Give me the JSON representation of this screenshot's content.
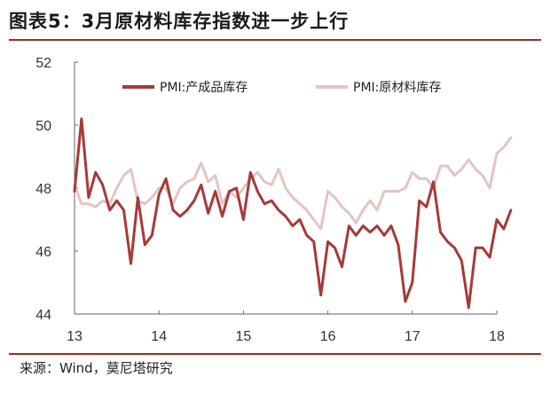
{
  "title": "图表5：3月原材料库存指数进一步上行",
  "source": "来源：Wind，莫尼塔研究",
  "colors": {
    "series1": "#a53a3a",
    "series2": "#e4c4c4",
    "rule": "#9a2c2c"
  },
  "chart_data": {
    "type": "line",
    "title": "图表5：3月原材料库存指数进一步上行",
    "xlabel": "",
    "ylabel": "",
    "x_ticks": [
      "13",
      "14",
      "15",
      "16",
      "17",
      "18"
    ],
    "x_tick_values": [
      2013,
      2014,
      2015,
      2016,
      2017,
      2018
    ],
    "y_ticks": [
      "44",
      "46",
      "48",
      "50",
      "52"
    ],
    "ylim": [
      44,
      52
    ],
    "xlim": [
      2013,
      2018.25
    ],
    "grid": false,
    "legend": "top",
    "x": [
      2013.0,
      2013.083,
      2013.167,
      2013.25,
      2013.333,
      2013.417,
      2013.5,
      2013.583,
      2013.667,
      2013.75,
      2013.833,
      2013.917,
      2014.0,
      2014.083,
      2014.167,
      2014.25,
      2014.333,
      2014.417,
      2014.5,
      2014.583,
      2014.667,
      2014.75,
      2014.833,
      2014.917,
      2015.0,
      2015.083,
      2015.167,
      2015.25,
      2015.333,
      2015.417,
      2015.5,
      2015.583,
      2015.667,
      2015.75,
      2015.833,
      2015.917,
      2016.0,
      2016.083,
      2016.167,
      2016.25,
      2016.333,
      2016.417,
      2016.5,
      2016.583,
      2016.667,
      2016.75,
      2016.833,
      2016.917,
      2017.0,
      2017.083,
      2017.167,
      2017.25,
      2017.333,
      2017.417,
      2017.5,
      2017.583,
      2017.667,
      2017.75,
      2017.833,
      2017.917,
      2018.0,
      2018.083,
      2018.167
    ],
    "series": [
      {
        "name": "PMI:产成品库存",
        "color": "#a53a3a",
        "values": [
          47.9,
          50.2,
          47.7,
          48.5,
          48.1,
          47.3,
          47.6,
          47.3,
          45.6,
          47.7,
          46.2,
          46.5,
          47.8,
          48.3,
          47.3,
          47.1,
          47.3,
          47.6,
          48.1,
          47.2,
          47.9,
          47.1,
          47.9,
          48.0,
          47.0,
          48.5,
          47.9,
          47.5,
          47.6,
          47.3,
          47.1,
          46.8,
          47.0,
          46.5,
          46.3,
          44.6,
          46.3,
          46.1,
          45.5,
          46.8,
          46.5,
          46.8,
          46.6,
          46.8,
          46.5,
          46.8,
          46.2,
          44.4,
          45.0,
          47.6,
          47.4,
          48.2,
          46.6,
          46.3,
          46.1,
          45.7,
          44.2,
          46.1,
          46.1,
          45.8,
          47.0,
          46.7,
          47.3
        ]
      },
      {
        "name": "PMI:原材料库存",
        "color": "#e4c4c4",
        "values": [
          48.1,
          47.5,
          47.5,
          47.4,
          47.6,
          47.5,
          48.0,
          48.4,
          48.6,
          47.6,
          47.5,
          47.7,
          48.0,
          48.0,
          47.5,
          48.0,
          48.2,
          48.3,
          48.8,
          48.2,
          48.4,
          47.5,
          47.9,
          47.7,
          48.0,
          48.3,
          48.5,
          48.2,
          48.1,
          48.6,
          48.0,
          47.7,
          47.5,
          47.3,
          47.0,
          46.7,
          47.9,
          47.7,
          47.4,
          47.2,
          46.9,
          47.3,
          47.6,
          47.3,
          47.9,
          47.9,
          47.9,
          48.0,
          48.5,
          48.3,
          48.3,
          48.0,
          48.7,
          48.7,
          48.4,
          48.6,
          48.9,
          48.6,
          48.4,
          48.0,
          49.1,
          49.3,
          49.6
        ]
      }
    ]
  }
}
